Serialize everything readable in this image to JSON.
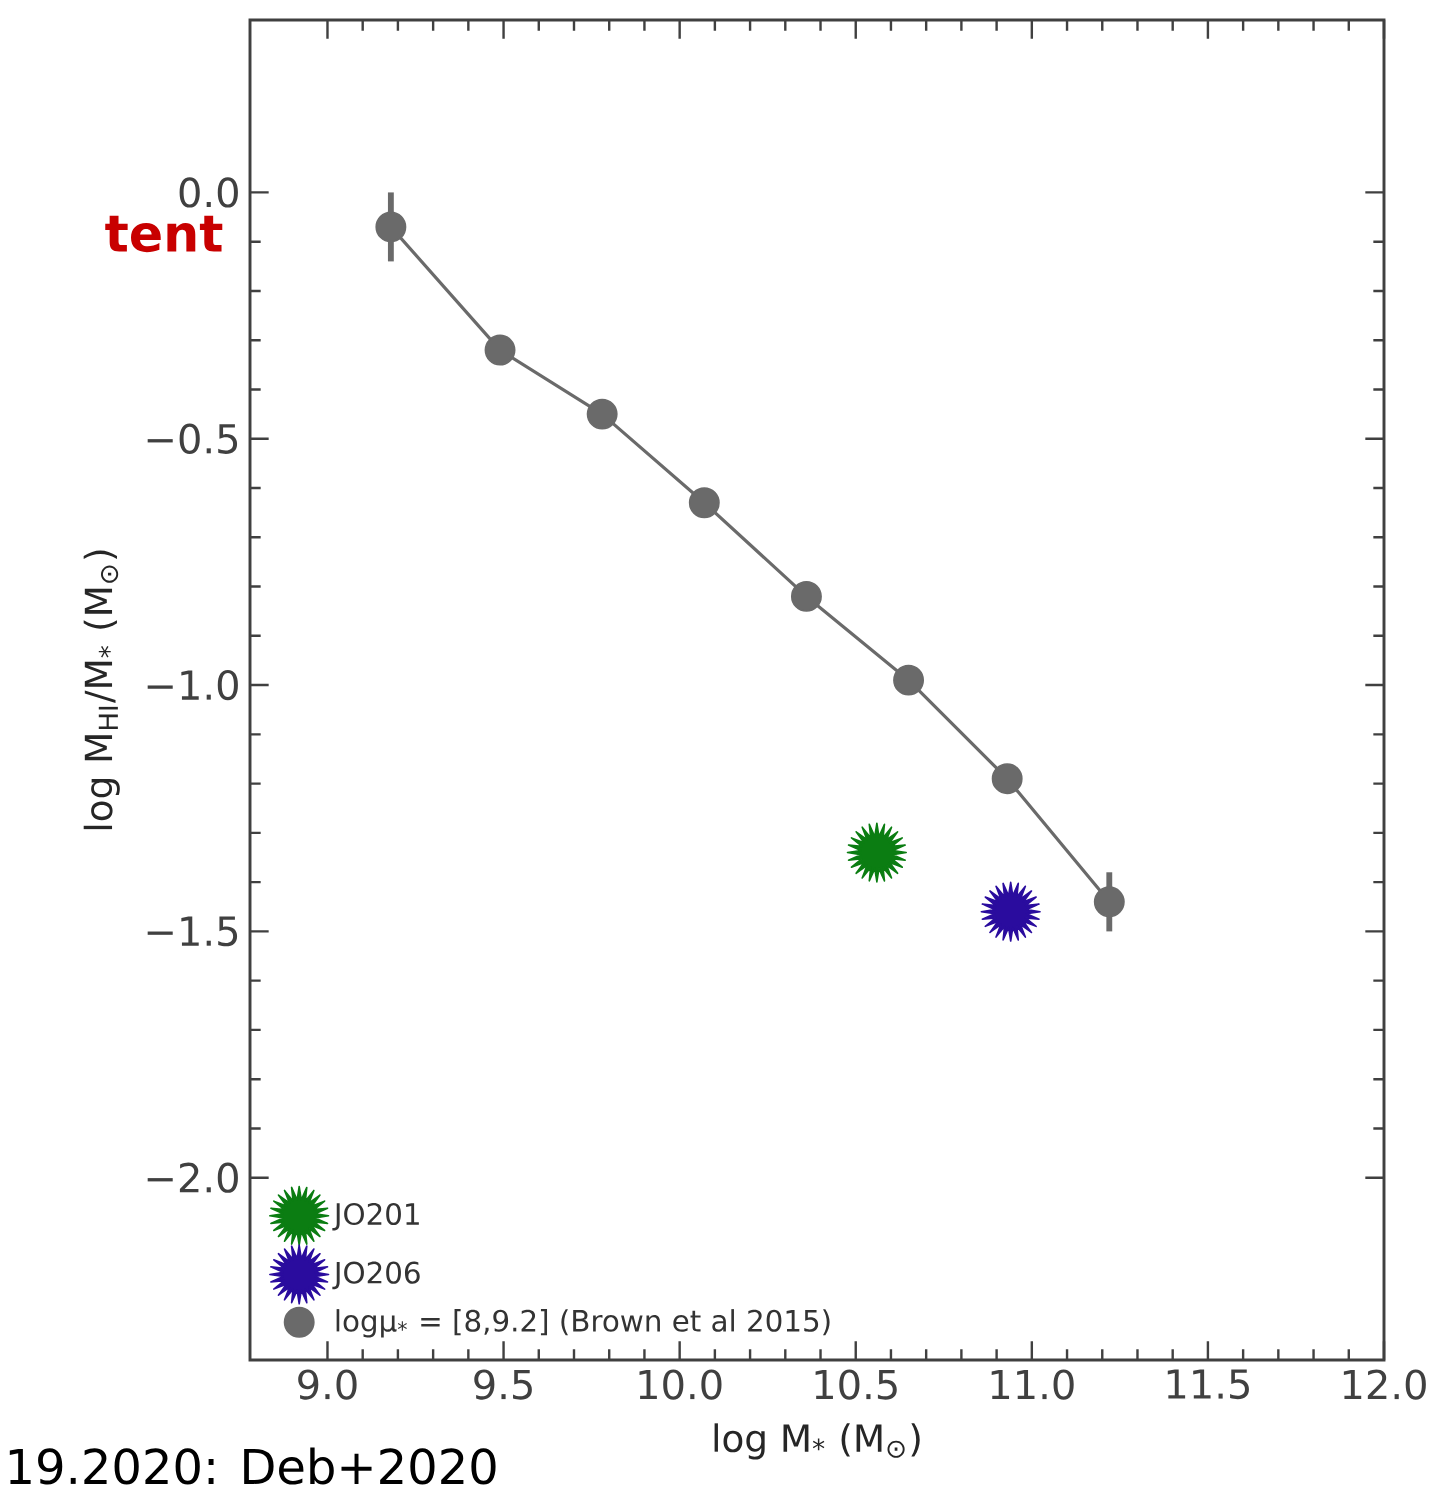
{
  "chart_data": {
    "type": "scatter",
    "xlabel": "log M$_{*}$ (M$_{⊙}$)",
    "ylabel": "log M$_{HI}$/M$_{*}$ (M$_{⊙}$)",
    "xlim": [
      8.78,
      12.0
    ],
    "ylim": [
      -2.37,
      0.35
    ],
    "xticks": [
      {
        "value": 9.0,
        "label": "9.0"
      },
      {
        "value": 9.5,
        "label": "9.5"
      },
      {
        "value": 10.0,
        "label": "10.0"
      },
      {
        "value": 10.5,
        "label": "10.5"
      },
      {
        "value": 11.0,
        "label": "11.0"
      },
      {
        "value": 11.5,
        "label": "11.5"
      },
      {
        "value": 12.0,
        "label": "12.0"
      }
    ],
    "yticks": [
      {
        "value": -2.0,
        "label": "−2.0"
      },
      {
        "value": -1.5,
        "label": "−1.5"
      },
      {
        "value": -1.0,
        "label": "−1.0"
      },
      {
        "value": -0.5,
        "label": "−0.5"
      },
      {
        "value": 0.0,
        "label": "0.0"
      }
    ],
    "legend": "bottom left",
    "series": [
      {
        "name": "JO201",
        "marker": "star",
        "color": "#0b7d12",
        "x": [
          10.56
        ],
        "values": [
          -1.34
        ]
      },
      {
        "name": "JO206",
        "marker": "star",
        "color": "#2a0c9e",
        "x": [
          10.94
        ],
        "values": [
          -1.46
        ]
      },
      {
        "name": "logμ$_{*}$ = [8,9.2] (Brown et al 2015)",
        "type": "line",
        "marker": "circle",
        "color": "#6a6a6a",
        "x": [
          9.18,
          9.49,
          9.78,
          10.07,
          10.36,
          10.65,
          10.93,
          11.22
        ],
        "values": [
          -0.07,
          -0.32,
          -0.45,
          -0.63,
          -0.82,
          -0.99,
          -1.19,
          -1.44
        ],
        "errors": [
          0.07,
          0.03,
          null,
          null,
          null,
          null,
          null,
          0.06
        ]
      }
    ],
    "annotations": [
      "tent",
      "19.2020: Deb+2020"
    ]
  }
}
